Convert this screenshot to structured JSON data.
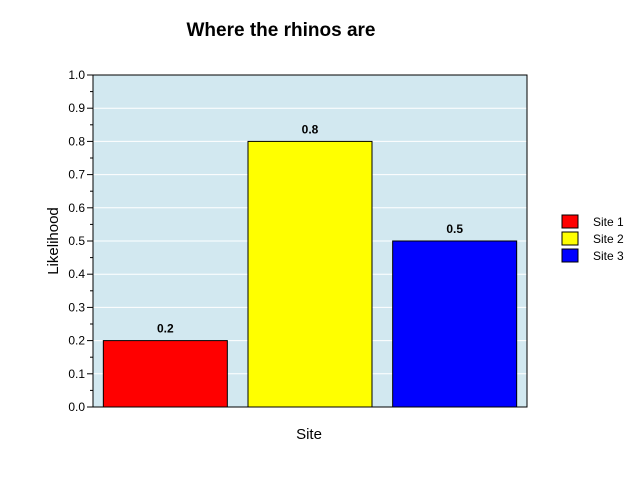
{
  "chart_data": {
    "type": "bar",
    "title": "Where the rhinos are",
    "xlabel": "Site",
    "ylabel": "Likelihood",
    "categories": [
      "Site 1",
      "Site 2",
      "Site 3"
    ],
    "values": [
      0.2,
      0.8,
      0.5
    ],
    "data_labels": [
      "0.2",
      "0.8",
      "0.5"
    ],
    "colors": [
      "#ff0000",
      "#ffff00",
      "#0000ff"
    ],
    "ylim": [
      0,
      1
    ],
    "yticks": [
      "0.0",
      "0.1",
      "0.2",
      "0.3",
      "0.4",
      "0.5",
      "0.6",
      "0.7",
      "0.8",
      "0.9",
      "1.0"
    ],
    "plot_background": "#d2e8f0",
    "grid": true,
    "legend": {
      "position": "right",
      "entries": [
        "Site 1",
        "Site 2",
        "Site 3"
      ]
    }
  }
}
